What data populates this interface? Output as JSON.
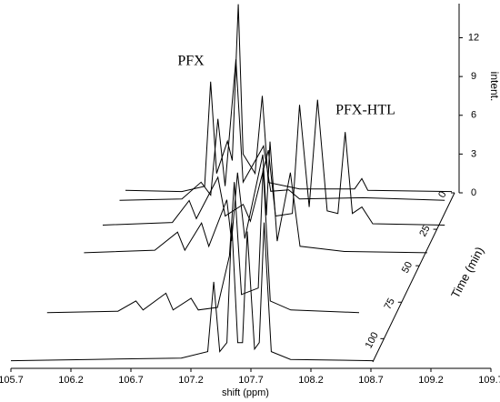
{
  "chart_data": {
    "type": "waterfall",
    "xlabel": "shift (ppm)",
    "tlabel": "Time (min)",
    "zlabel": "intent.",
    "annotations": [
      "PFX",
      "PFX-HTL"
    ],
    "xlim": [
      105.7,
      109.7
    ],
    "xticks": [
      105.7,
      106.2,
      106.7,
      107.2,
      107.7,
      108.2,
      108.7,
      109.2,
      109.7
    ],
    "tlim": [
      0,
      116
    ],
    "tticks": [
      0,
      25,
      50,
      75,
      100
    ],
    "zlim": [
      0,
      14.5
    ],
    "zticks": [
      0,
      3,
      6,
      9,
      12
    ],
    "color": "#000000",
    "series": [
      {
        "t": 0,
        "x": [
          105.7,
          106.17,
          106.36,
          106.41,
          106.46,
          106.55,
          106.59,
          106.64,
          106.68,
          106.78,
          106.84,
          106.89,
          107.15,
          107.61,
          107.67,
          107.72,
          108.42
        ],
        "values": [
          0.2,
          0.1,
          0.5,
          8.6,
          1.5,
          4.0,
          2.5,
          14.6,
          3.0,
          1.5,
          7.5,
          0.8,
          0.3,
          0.3,
          1.1,
          0.2,
          0.1
        ]
      },
      {
        "t": 6,
        "x": [
          105.7,
          106.22,
          106.38,
          106.46,
          106.52,
          106.58,
          106.67,
          106.73,
          106.9,
          106.96,
          107.11,
          107.2,
          107.73,
          108.41
        ],
        "values": [
          0.1,
          0.2,
          1.5,
          0.5,
          6.4,
          1.2,
          11.0,
          1.5,
          4.3,
          0.8,
          0.9,
          0.2,
          0.3,
          0.1
        ]
      },
      {
        "t": 23,
        "x": [
          105.7,
          106.28,
          106.42,
          106.48,
          106.66,
          106.72,
          106.87,
          106.93,
          107.08,
          107.14,
          107.28,
          107.34,
          107.42,
          107.49,
          107.57,
          107.66,
          107.72,
          107.78,
          107.86,
          107.95,
          108.55
        ],
        "values": [
          0.1,
          0.3,
          2.0,
          0.6,
          3.8,
          0.8,
          1.7,
          0.4,
          5.9,
          0.8,
          1.0,
          9.4,
          1.5,
          9.8,
          1.2,
          1.0,
          7.3,
          1.0,
          1.5,
          0.2,
          0.1
        ]
      },
      {
        "t": 42,
        "x": [
          105.7,
          106.29,
          106.48,
          106.54,
          106.68,
          106.74,
          106.89,
          106.93,
          106.98,
          107.04,
          107.19,
          107.22,
          107.25,
          107.31,
          107.42,
          107.5,
          107.87,
          108.56
        ],
        "values": [
          0.1,
          0.3,
          1.7,
          0.3,
          2.4,
          0.6,
          4.2,
          1.0,
          6.3,
          1.2,
          7.7,
          3.0,
          8.7,
          1.0,
          6.3,
          0.6,
          0.2,
          0.1
        ]
      },
      {
        "t": 83,
        "x": [
          105.73,
          106.32,
          106.47,
          106.53,
          106.72,
          106.78,
          106.93,
          106.99,
          107.15,
          107.25,
          107.29,
          107.35,
          107.49,
          107.53,
          107.59,
          107.76,
          108.33
        ],
        "values": [
          0.1,
          0.2,
          1.0,
          0.3,
          1.6,
          0.3,
          1.2,
          0.3,
          0.5,
          4.5,
          10.2,
          1.5,
          2.0,
          11.3,
          1.0,
          0.3,
          0.1
        ]
      },
      {
        "t": 116,
        "x": [
          105.7,
          106.37,
          107.12,
          107.34,
          107.39,
          107.44,
          107.5,
          107.54,
          107.59,
          107.63,
          107.67,
          107.73,
          107.77,
          107.81,
          107.87,
          108.03,
          108.72
        ],
        "values": [
          0.1,
          0.2,
          0.3,
          0.8,
          6.2,
          0.8,
          1.5,
          10.8,
          1.5,
          1.5,
          10.1,
          1.0,
          1.5,
          10.8,
          0.8,
          0.2,
          0.1
        ]
      }
    ]
  }
}
